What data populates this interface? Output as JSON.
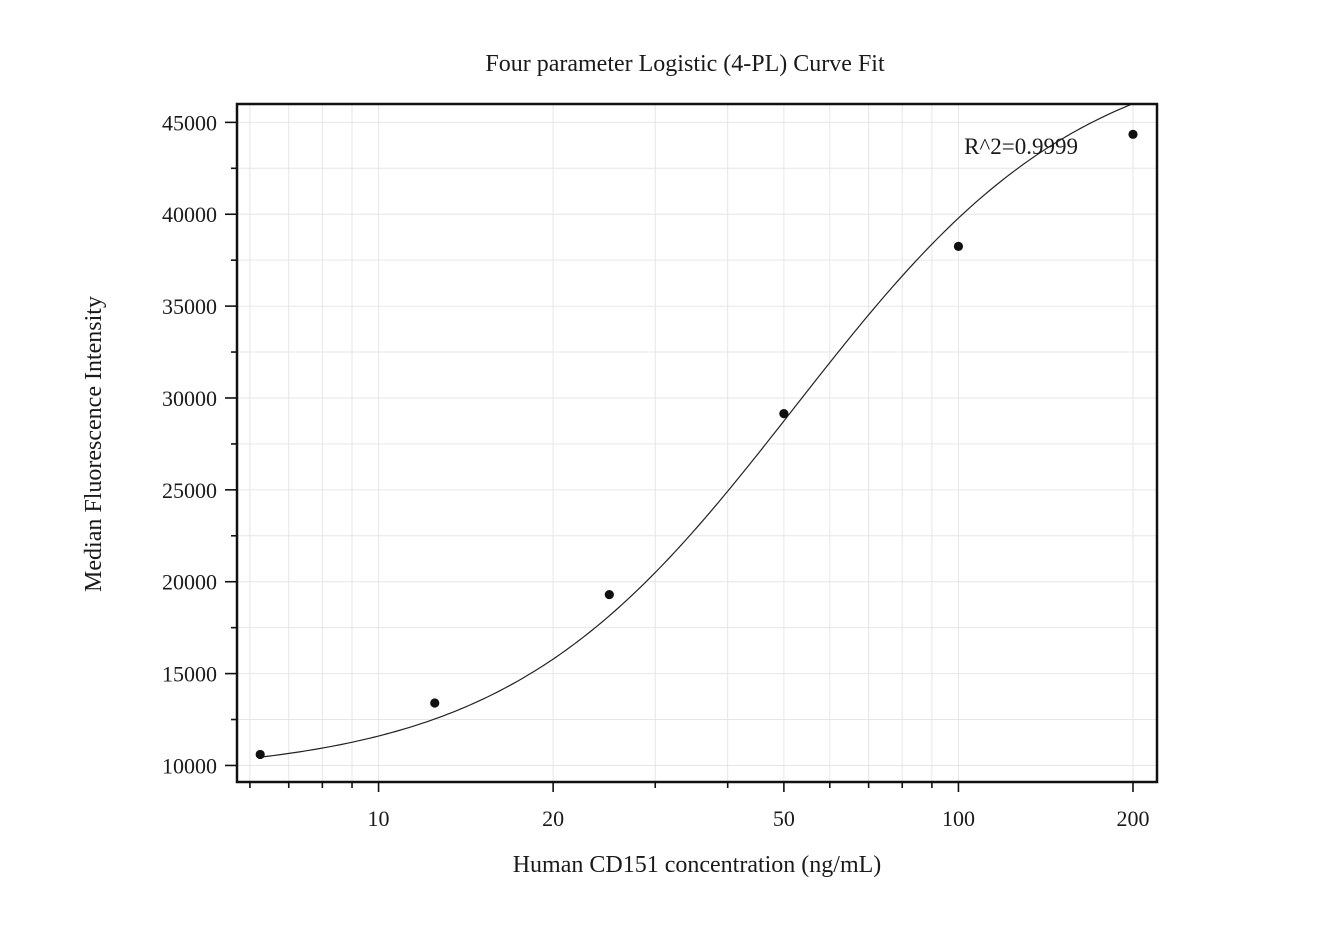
{
  "chart_data": {
    "type": "scatter",
    "title": "Four parameter Logistic (4-PL) Curve Fit",
    "xlabel": "Human CD151 concentration (ng/mL)",
    "ylabel": "Median Fluorescence Intensity",
    "x_scale": "log",
    "xlim": [
      5.7,
      220
    ],
    "ylim": [
      9100,
      46000
    ],
    "x_ticks": [
      10,
      20,
      50,
      100,
      200
    ],
    "x_tick_labels": [
      "10",
      "20",
      "50",
      "100",
      "200"
    ],
    "y_ticks": [
      10000,
      15000,
      20000,
      25000,
      30000,
      35000,
      40000,
      45000
    ],
    "y_tick_labels": [
      "10000",
      "15000",
      "20000",
      "25000",
      "30000",
      "35000",
      "40000",
      "45000"
    ],
    "grid": true,
    "series": [
      {
        "points": [
          {
            "x": 6.25,
            "y": 10600
          },
          {
            "x": 12.5,
            "y": 13400
          },
          {
            "x": 25,
            "y": 19300
          },
          {
            "x": 50,
            "y": 29150
          },
          {
            "x": 100,
            "y": 38250
          },
          {
            "x": 200,
            "y": 44350
          }
        ],
        "fit": {
          "model": "4PL",
          "a": 9500,
          "d": 49500,
          "c": 52.2,
          "b": 1.75
        }
      }
    ],
    "annotation": "R^2=0.9999",
    "color": "#111111"
  }
}
